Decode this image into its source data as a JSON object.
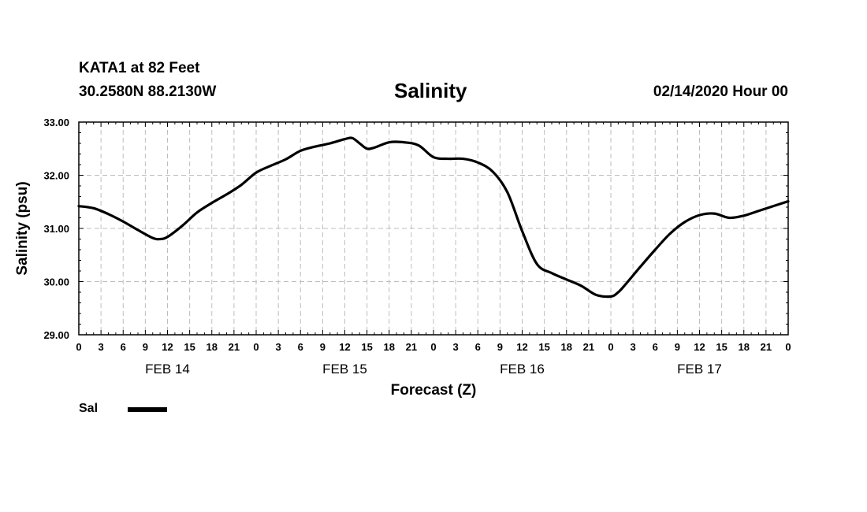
{
  "header": {
    "station": "KATA1 at 82 Feet",
    "coords": "30.2580N 88.2130W",
    "timestamp": "02/14/2020 Hour 00"
  },
  "chart_data": {
    "type": "line",
    "title": "Salinity",
    "xlabel": "Forecast (Z)",
    "ylabel": "Salinity (psu)",
    "ylim": [
      29.0,
      33.0
    ],
    "y_ticks": [
      "29.00",
      "30.00",
      "31.00",
      "32.00",
      "33.00"
    ],
    "x_range_hours": [
      0,
      96
    ],
    "x_tick_labels": [
      "0",
      "3",
      "6",
      "9",
      "12",
      "15",
      "18",
      "21",
      "0",
      "3",
      "6",
      "9",
      "12",
      "15",
      "18",
      "21",
      "0",
      "3",
      "6",
      "9",
      "12",
      "15",
      "18",
      "21",
      "0",
      "3",
      "6",
      "9",
      "12",
      "15",
      "18",
      "21",
      "0"
    ],
    "day_labels": [
      "FEB 14",
      "FEB 15",
      "FEB 16",
      "FEB 17"
    ],
    "grid": true,
    "series": [
      {
        "name": "Sal",
        "color": "#000000",
        "x_hours": [
          0,
          2,
          4,
          6,
          8,
          10,
          11,
          12,
          14,
          16,
          18,
          20,
          22,
          24,
          26,
          28,
          30,
          32,
          34,
          36,
          37,
          38,
          39,
          40,
          42,
          44,
          46,
          48,
          50,
          52,
          54,
          56,
          58,
          60,
          62,
          64,
          66,
          68,
          70,
          72,
          73,
          74,
          76,
          78,
          80,
          82,
          84,
          86,
          88,
          90,
          92,
          94,
          96
        ],
        "values": [
          31.42,
          31.38,
          31.27,
          31.13,
          30.97,
          30.82,
          30.8,
          30.84,
          31.05,
          31.3,
          31.48,
          31.64,
          31.82,
          32.05,
          32.18,
          32.3,
          32.46,
          32.54,
          32.6,
          32.68,
          32.7,
          32.6,
          32.5,
          32.52,
          32.62,
          32.62,
          32.56,
          32.34,
          32.31,
          32.31,
          32.24,
          32.07,
          31.68,
          30.95,
          30.33,
          30.16,
          30.04,
          29.92,
          29.75,
          29.72,
          29.8,
          29.95,
          30.28,
          30.6,
          30.9,
          31.12,
          31.25,
          31.28,
          31.2,
          31.24,
          31.33,
          31.42,
          31.51
        ]
      }
    ],
    "legend": "bottom-left"
  }
}
